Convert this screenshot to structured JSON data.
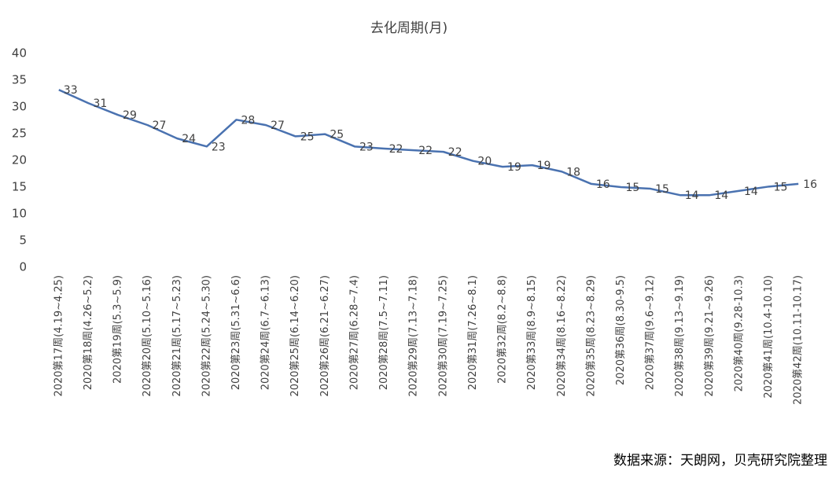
{
  "chart_data": {
    "type": "line",
    "title": "去化周期(月)",
    "categories": [
      "2020第17周(4.19~4.25)",
      "2020第18周(4.26~5.2)",
      "2020第19周(5.3~5.9)",
      "2020第20周(5.10~5.16)",
      "2020第21周(5.17~5.23)",
      "2020第22周(5.24~5.30)",
      "2020第23周(5.31~6.6)",
      "2020第24周(6.7~6.13)",
      "2020第25周(6.14~6.20)",
      "2020第26周(6.21~6.27)",
      "2020第27周(6.28~7.4)",
      "2020第28周(7.5~7.11)",
      "2020第29周(7.13~7.18)",
      "2020第30周(7.19~7.25)",
      "2020第31周(7.26~8.1)",
      "2020第32周(8.2~8.8)",
      "2020第33周(8.9~8.15)",
      "2020第34周(8.16~8.22)",
      "2020第35周(8.23~8.29)",
      "2020第36周(8.30-9.5)",
      "2020第37周(9.6~9.12)",
      "2020第38周(9.13~9.19)",
      "2020第39周(9.21~9.26)",
      "2020第40周(9.28-10.3)",
      "2020第41周(10.4-10.10)",
      "2020第42周(10.11-10.17)"
    ],
    "series": [
      {
        "name": "去化周期(月)",
        "color": "#4a72b0",
        "values": [
          33.2,
          30.7,
          28.5,
          26.6,
          24.1,
          22.6,
          27.6,
          26.6,
          24.5,
          24.9,
          22.6,
          22.2,
          21.9,
          21.6,
          19.9,
          18.8,
          19.1,
          17.9,
          15.6,
          15.0,
          14.7,
          13.5,
          13.5,
          14.3,
          15.1,
          15.6
        ],
        "value_labels": [
          "33",
          "31",
          "29",
          "27",
          "24",
          "23",
          "28",
          "27",
          "25",
          "25",
          "23",
          "22",
          "22",
          "22",
          "20",
          "19",
          "19",
          "18",
          "16",
          "15",
          "15",
          "14",
          "14",
          "14",
          "15",
          "16"
        ]
      }
    ],
    "ylim": [
      0,
      40
    ],
    "yticks": [
      0,
      5,
      10,
      15,
      20,
      25,
      30,
      35,
      40
    ],
    "grid": false,
    "source": "数据来源：天朗网，贝壳研究院整理"
  }
}
